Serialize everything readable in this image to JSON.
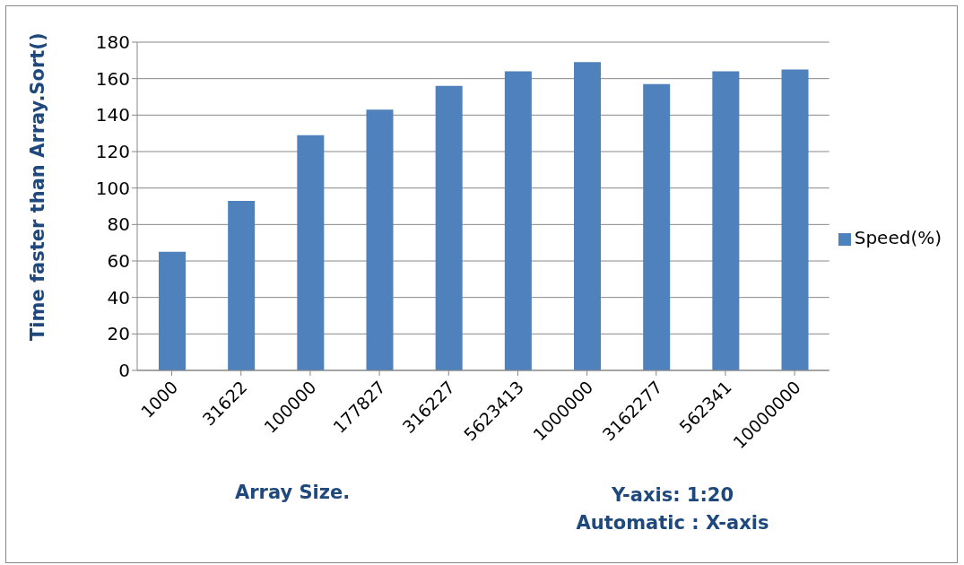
{
  "chart_data": {
    "type": "bar",
    "ylabel": "Time faster than Array.Sort()",
    "xlabel": "Array Size.",
    "categories": [
      "1000",
      "31622",
      "100000",
      "177827",
      "316227",
      "5623413",
      "1000000",
      "3162277",
      "562341",
      "10000000"
    ],
    "series": [
      {
        "name": "Speed(%)",
        "color": "#4f81bd",
        "values": [
          65,
          93,
          129,
          143,
          156,
          164,
          169,
          157,
          164,
          165
        ]
      }
    ],
    "ylim": [
      0,
      180
    ],
    "yticks": [
      0,
      20,
      40,
      60,
      80,
      100,
      120,
      140,
      160,
      180
    ],
    "grid": "y",
    "legend": "right",
    "annotations": [
      "Y-axis: 1:20",
      "Automatic : X-axis"
    ]
  }
}
